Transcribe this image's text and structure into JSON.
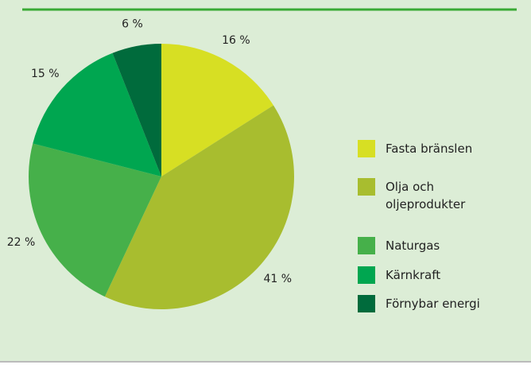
{
  "chart_data": {
    "type": "pie",
    "series": [
      {
        "name": "Fasta bränslen",
        "color": "#d7df23"
      },
      {
        "name": "Olja och oljeprodukter",
        "color": "#a8bd2f"
      },
      {
        "name": "Naturgas",
        "color": "#46b04a"
      },
      {
        "name": "Kärnkraft",
        "color": "#00a650"
      },
      {
        "name": "Förnybar energi",
        "color": "#006b3c"
      }
    ],
    "values": [
      16,
      41,
      22,
      15,
      6
    ],
    "value_labels": [
      "16 %",
      "41 %",
      "22 %",
      "15 %",
      "6 %"
    ]
  }
}
